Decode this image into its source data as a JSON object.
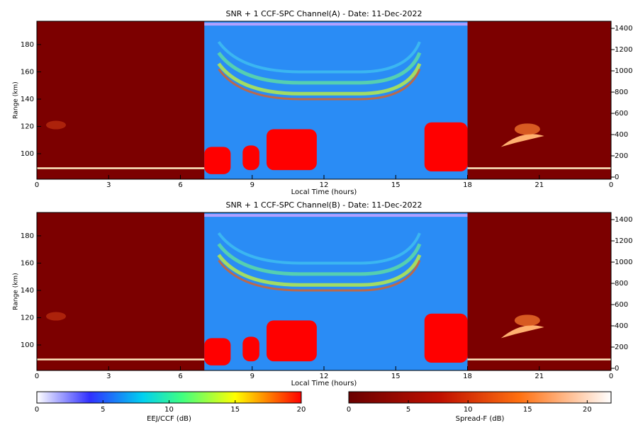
{
  "chart_data": [
    {
      "type": "heatmap",
      "title": "SNR + 1 CCF-SPC Channel(A) - Date: 11-Dec-2022",
      "xlabel": "Local Time (hours)",
      "ylabel": "Range (km)",
      "xlim": [
        0,
        24
      ],
      "xticks": [
        0,
        3,
        6,
        9,
        12,
        15,
        18,
        21,
        {
          "value": 24,
          "label": "0"
        }
      ],
      "ylim": [
        81.3,
        197.1
      ],
      "yticks": [
        100,
        120,
        140,
        160,
        180
      ],
      "y2lim": [
        -20,
        1467
      ],
      "y2ticks": [
        0,
        200,
        400,
        600,
        800,
        1000,
        1200,
        1400
      ]
    },
    {
      "type": "heatmap",
      "title": "SNR + 1 CCF-SPC Channel(B) - Date: 11-Dec-2022",
      "xlabel": "Local Time (hours)",
      "ylabel": "Range (km)",
      "xlim": [
        0,
        24
      ],
      "xticks": [
        0,
        3,
        6,
        9,
        12,
        15,
        18,
        21,
        {
          "value": 24,
          "label": "0"
        }
      ],
      "ylim": [
        81.3,
        197.1
      ],
      "yticks": [
        100,
        120,
        140,
        160,
        180
      ],
      "y2lim": [
        -20,
        1467
      ],
      "y2ticks": [
        0,
        200,
        400,
        600,
        800,
        1000,
        1200,
        1400
      ]
    }
  ],
  "colorbars": [
    {
      "label": "EEJ/CCF (dB)",
      "lim": [
        0,
        20
      ],
      "ticks": [
        0,
        5,
        10,
        15,
        20
      ]
    },
    {
      "label": "Spread-F (dB)",
      "lim": [
        0,
        22
      ],
      "ticks": [
        0,
        5,
        10,
        15,
        20
      ]
    }
  ]
}
